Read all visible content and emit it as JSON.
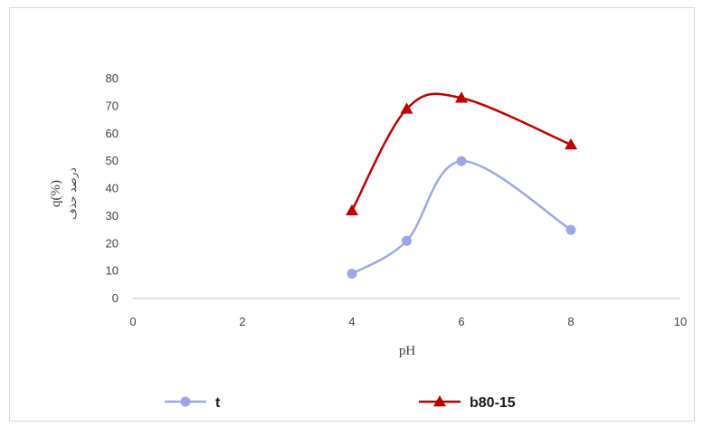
{
  "chart_data": {
    "type": "line",
    "xlabel": "pH",
    "ylabel": "q(%)",
    "ylabel_secondary": "درصد حذف",
    "xlim": [
      0,
      10
    ],
    "ylim": [
      0,
      80
    ],
    "x_ticks": [
      0,
      2,
      4,
      6,
      8,
      10
    ],
    "y_ticks": [
      0,
      10,
      20,
      30,
      40,
      50,
      60,
      70,
      80
    ],
    "grid": false,
    "legend_position": "bottom",
    "smooth": true,
    "series": [
      {
        "name": "t",
        "x": [
          4,
          5,
          6,
          8
        ],
        "values": [
          9,
          21,
          50,
          25
        ],
        "color": "#9da7e8",
        "marker": "circle"
      },
      {
        "name": "b80-15",
        "x": [
          4,
          5,
          6,
          8
        ],
        "values": [
          32,
          69,
          73,
          56
        ],
        "color": "#c00000",
        "marker": "triangle"
      }
    ]
  }
}
